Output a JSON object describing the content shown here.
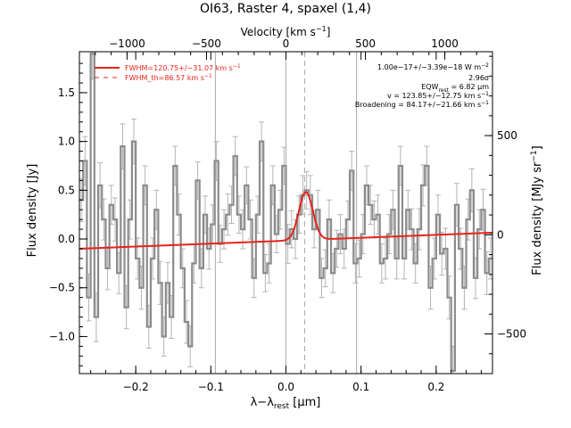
{
  "chart_data": {
    "type": "line",
    "title": "OI63, Raster 4, spaxel (1,4)",
    "xlabel": "λ−λrest [μm]",
    "ylabel_left": "Flux density [Jy]",
    "ylabel_right": "Flux density [MJy sr⁻¹]",
    "top_axis_label": "Velocity [km s⁻¹]",
    "xlim": [
      -0.275,
      0.275
    ],
    "ylim": [
      -1.38,
      1.92
    ],
    "velocity_range": [
      -1300,
      1300
    ],
    "right_axis_range": [
      -700,
      923
    ],
    "x_ticks": [
      -0.2,
      -0.1,
      0.0,
      0.1,
      0.2
    ],
    "x_tick_labels": [
      "−0.2",
      "−0.1",
      "0.0",
      "0.1",
      "0.2"
    ],
    "y_ticks": [
      -1.0,
      -0.5,
      0.0,
      0.5,
      1.0,
      1.5
    ],
    "y_tick_labels": [
      "−1.0",
      "−0.5",
      "0.0",
      "0.5",
      "1.0",
      "1.5"
    ],
    "top_ticks": [
      -1000,
      -500,
      0,
      500,
      1000
    ],
    "top_tick_labels": [
      "−1000",
      "−500",
      "0",
      "500",
      "1000"
    ],
    "right_ticks": [
      -500,
      0,
      500
    ],
    "right_tick_labels": [
      "−500",
      "0",
      "500"
    ],
    "vertical_lines_x": [
      -0.094,
      0.0,
      0.094
    ],
    "dashed_line_x": 0.025,
    "annotations": {
      "line1": "1.00e−17+/−3.39e−18 W m⁻²",
      "line2": "2.96σ",
      "line3": "EQWrest = 6.82 μm",
      "line4": "v = 123.85+/−12.75 km s⁻¹",
      "line5": "Broadening = 84.17+/−21.66 km s⁻¹"
    },
    "legend": [
      {
        "name": "FWHM=120.75+/−31.07 km s⁻¹",
        "style": "solid"
      },
      {
        "name": "FWHM_th=86.57 km s⁻¹",
        "style": "dashed"
      }
    ],
    "fit": {
      "baseline_start": [
        -0.275,
        -0.1
      ],
      "baseline_end": [
        0.275,
        0.065
      ],
      "gaussian_center": 0.0265,
      "gaussian_amplitude": 0.49,
      "gaussian_sigma": 0.0093
    },
    "series": [
      {
        "style": "histogram",
        "x": [
          -0.275,
          -0.27,
          -0.265,
          -0.26,
          -0.255,
          -0.25,
          -0.245,
          -0.24,
          -0.235,
          -0.23,
          -0.225,
          -0.22,
          -0.215,
          -0.21,
          -0.205,
          -0.2,
          -0.195,
          -0.19,
          -0.185,
          -0.18,
          -0.175,
          -0.17,
          -0.165,
          -0.16,
          -0.155,
          -0.15,
          -0.145,
          -0.14,
          -0.135,
          -0.13,
          -0.125,
          -0.12,
          -0.115,
          -0.11,
          -0.105,
          -0.1,
          -0.095,
          -0.09,
          -0.085,
          -0.08,
          -0.075,
          -0.07,
          -0.065,
          -0.06,
          -0.055,
          -0.05,
          -0.045,
          -0.04,
          -0.035,
          -0.03,
          -0.025,
          -0.02,
          -0.015,
          -0.01,
          -0.005,
          0.0,
          0.005,
          0.01,
          0.015,
          0.02,
          0.025,
          0.03,
          0.035,
          0.04,
          0.045,
          0.05,
          0.055,
          0.06,
          0.065,
          0.07,
          0.075,
          0.08,
          0.085,
          0.09,
          0.095,
          0.1,
          0.105,
          0.11,
          0.115,
          0.12,
          0.125,
          0.13,
          0.135,
          0.14,
          0.145,
          0.15,
          0.155,
          0.16,
          0.165,
          0.17,
          0.175,
          0.18,
          0.185,
          0.19,
          0.195,
          0.2,
          0.205,
          0.21,
          0.215,
          0.22,
          0.225,
          0.23,
          0.235,
          0.24,
          0.245,
          0.25,
          0.255,
          0.26,
          0.265,
          0.27
        ],
        "y": [
          0.4,
          0.8,
          -0.6,
          1.9,
          -0.8,
          0.55,
          0.2,
          -0.3,
          0.35,
          0.2,
          -0.35,
          0.95,
          -0.7,
          0.2,
          1.0,
          -0.2,
          -0.5,
          0.55,
          -0.9,
          -0.2,
          0.3,
          -0.45,
          -1.0,
          -0.45,
          -0.8,
          0.75,
          0.25,
          -0.3,
          -0.85,
          -1.1,
          -0.25,
          0.6,
          -0.3,
          0.25,
          -0.1,
          0.15,
          0.8,
          -0.05,
          0.1,
          0.25,
          0.35,
          0.85,
          0.25,
          0.1,
          0.55,
          0.2,
          -0.4,
          0.25,
          1.0,
          -0.35,
          -0.25,
          0.55,
          0.05,
          0.3,
          0.75,
          -0.05,
          0.1,
          0.0,
          0.25,
          0.45,
          0.5,
          0.45,
          0.1,
          0.3,
          -0.4,
          -0.3,
          0.2,
          -0.35,
          -0.1,
          0.05,
          -0.1,
          0.2,
          0.7,
          -0.25,
          -0.2,
          0.05,
          0.55,
          0.35,
          0.2,
          0.25,
          -0.25,
          -0.2,
          0.05,
          0.3,
          -0.2,
          0.75,
          -0.2,
          0.3,
          0.1,
          -0.25,
          0.1,
          0.55,
          0.75,
          -0.5,
          -0.2,
          0.25,
          -0.15,
          -0.1,
          -0.6,
          -1.35,
          0.35,
          -0.1,
          -0.5,
          0.2,
          0.5,
          -0.4,
          0.1,
          0.3,
          -0.35,
          -0.2
        ],
        "error": [
          0.22,
          0.25,
          0.24,
          0.26,
          0.25,
          0.23,
          0.21,
          0.22,
          0.2,
          0.22,
          0.21,
          0.23,
          0.22,
          0.2,
          0.23,
          0.21,
          0.22,
          0.2,
          0.22,
          0.21,
          0.2,
          0.22,
          0.2,
          0.21,
          0.22,
          0.2,
          0.21,
          0.2,
          0.22,
          0.21,
          0.2,
          0.19,
          0.2,
          0.19,
          0.21,
          0.2,
          0.2,
          0.19,
          0.2,
          0.21,
          0.19,
          0.2,
          0.19,
          0.2,
          0.19,
          0.2,
          0.2,
          0.19,
          0.2,
          0.19,
          0.2,
          0.2,
          0.19,
          0.2,
          0.19,
          0.2,
          0.19,
          0.2,
          0.19,
          0.2,
          0.19,
          0.2,
          0.19,
          0.2,
          0.2,
          0.19,
          0.2,
          0.2,
          0.19,
          0.2,
          0.2,
          0.19,
          0.2,
          0.2,
          0.19,
          0.2,
          0.2,
          0.2,
          0.19,
          0.2,
          0.2,
          0.21,
          0.2,
          0.2,
          0.21,
          0.2,
          0.21,
          0.2,
          0.21,
          0.2,
          0.21,
          0.21,
          0.2,
          0.22,
          0.21,
          0.2,
          0.22,
          0.21,
          0.22,
          0.25,
          0.22,
          0.21,
          0.22,
          0.21,
          0.22,
          0.21,
          0.2,
          0.21,
          0.22,
          0.21
        ]
      }
    ]
  },
  "colors": {
    "data": "#8c8c8c",
    "error": "#b4b4b4",
    "fit": "#e8231c",
    "vline": "#aaaaaa",
    "axis": "#000000"
  }
}
